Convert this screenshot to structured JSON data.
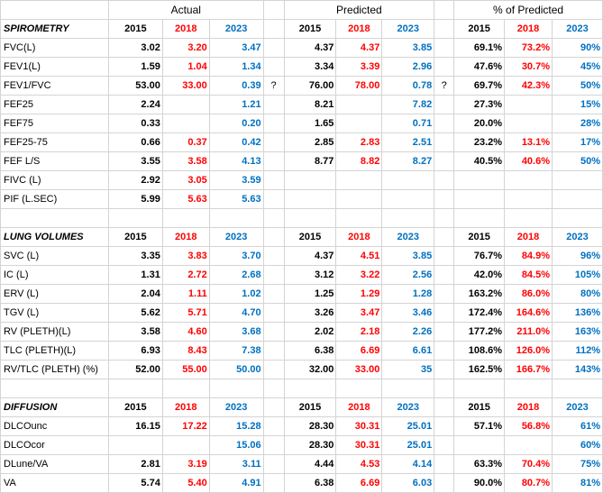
{
  "groups": {
    "actual": "Actual",
    "predicted": "Predicted",
    "pct": "% of Predicted"
  },
  "sections": [
    "SPIROMETRY",
    "LUNG VOLUMES",
    "DIFFUSION"
  ],
  "years": [
    "2015",
    "2018",
    "2023"
  ],
  "rows": [
    {
      "type": "header"
    },
    {
      "type": "section",
      "idx": 0
    },
    {
      "type": "data",
      "label": "FVC(L)",
      "a": [
        "3.02",
        "3.20",
        "3.47"
      ],
      "p": [
        "4.37",
        "4.37",
        "3.85"
      ],
      "pc": [
        "69.1%",
        "73.2%",
        "90%"
      ]
    },
    {
      "type": "data",
      "label": "FEV1(L)",
      "a": [
        "1.59",
        "1.04",
        "1.34"
      ],
      "p": [
        "3.34",
        "3.39",
        "2.96"
      ],
      "pc": [
        "47.6%",
        "30.7%",
        "45%"
      ]
    },
    {
      "type": "data",
      "label": "FEV1/FVC",
      "a": [
        "53.00",
        "33.00",
        "0.39"
      ],
      "q1": "?",
      "p": [
        "76.00",
        "78.00",
        "0.78"
      ],
      "q2": "?",
      "pc": [
        "69.7%",
        "42.3%",
        "50%"
      ]
    },
    {
      "type": "data",
      "label": "FEF25",
      "a": [
        "2.24",
        "",
        "1.21"
      ],
      "p": [
        "8.21",
        "",
        "7.82"
      ],
      "pc": [
        "27.3%",
        "",
        "15%"
      ]
    },
    {
      "type": "data",
      "label": "FEF75",
      "a": [
        "0.33",
        "",
        "0.20"
      ],
      "p": [
        "1.65",
        "",
        "0.71"
      ],
      "pc": [
        "20.0%",
        "",
        "28%"
      ]
    },
    {
      "type": "data",
      "label": "FEF25-75",
      "a": [
        "0.66",
        "0.37",
        "0.42"
      ],
      "p": [
        "2.85",
        "2.83",
        "2.51"
      ],
      "pc": [
        "23.2%",
        "13.1%",
        "17%"
      ]
    },
    {
      "type": "data",
      "label": "FEF L/S",
      "a": [
        "3.55",
        "3.58",
        "4.13"
      ],
      "p": [
        "8.77",
        "8.82",
        "8.27"
      ],
      "pc": [
        "40.5%",
        "40.6%",
        "50%"
      ]
    },
    {
      "type": "data",
      "label": "FIVC (L)",
      "a": [
        "2.92",
        "3.05",
        "3.59"
      ],
      "p": [
        "",
        "",
        ""
      ],
      "pc": [
        "",
        "",
        ""
      ]
    },
    {
      "type": "data",
      "label": "PIF (L.SEC)",
      "a": [
        "5.99",
        "5.63",
        "5.63"
      ],
      "p": [
        "",
        "",
        ""
      ],
      "pc": [
        "",
        "",
        ""
      ]
    },
    {
      "type": "blank"
    },
    {
      "type": "section",
      "idx": 1
    },
    {
      "type": "data",
      "label": "SVC (L)",
      "a": [
        "3.35",
        "3.83",
        "3.70"
      ],
      "p": [
        "4.37",
        "4.51",
        "3.85"
      ],
      "pc": [
        "76.7%",
        "84.9%",
        "96%"
      ]
    },
    {
      "type": "data",
      "label": "IC (L)",
      "a": [
        "1.31",
        "2.72",
        "2.68"
      ],
      "p": [
        "3.12",
        "3.22",
        "2.56"
      ],
      "pc": [
        "42.0%",
        "84.5%",
        "105%"
      ]
    },
    {
      "type": "data",
      "label": "ERV (L)",
      "a": [
        "2.04",
        "1.11",
        "1.02"
      ],
      "p": [
        "1.25",
        "1.29",
        "1.28"
      ],
      "pc": [
        "163.2%",
        "86.0%",
        "80%"
      ]
    },
    {
      "type": "data",
      "label": "TGV (L)",
      "a": [
        "5.62",
        "5.71",
        "4.70"
      ],
      "p": [
        "3.26",
        "3.47",
        "3.46"
      ],
      "pc": [
        "172.4%",
        "164.6%",
        "136%"
      ]
    },
    {
      "type": "data",
      "label": "RV (PLETH)(L)",
      "a": [
        "3.58",
        "4.60",
        "3.68"
      ],
      "p": [
        "2.02",
        "2.18",
        "2.26"
      ],
      "pc": [
        "177.2%",
        "211.0%",
        "163%"
      ]
    },
    {
      "type": "data",
      "label": "TLC (PLETH)(L)",
      "a": [
        "6.93",
        "8.43",
        "7.38"
      ],
      "p": [
        "6.38",
        "6.69",
        "6.61"
      ],
      "pc": [
        "108.6%",
        "126.0%",
        "112%"
      ]
    },
    {
      "type": "data",
      "label": "RV/TLC (PLETH) (%)",
      "a": [
        "52.00",
        "55.00",
        "50.00"
      ],
      "p": [
        "32.00",
        "33.00",
        "35"
      ],
      "pc": [
        "162.5%",
        "166.7%",
        "143%"
      ]
    },
    {
      "type": "blank"
    },
    {
      "type": "section",
      "idx": 2
    },
    {
      "type": "data",
      "label": "DLCOunc",
      "a": [
        "16.15",
        "17.22",
        "15.28"
      ],
      "p": [
        "28.30",
        "30.31",
        "25.01"
      ],
      "pc": [
        "57.1%",
        "56.8%",
        "61%"
      ]
    },
    {
      "type": "data",
      "label": "DLCOcor",
      "a": [
        "",
        "",
        "15.06"
      ],
      "p": [
        "28.30",
        "30.31",
        "25.01"
      ],
      "pc": [
        "",
        "",
        "60%"
      ]
    },
    {
      "type": "data",
      "label": "DLune/VA",
      "a": [
        "2.81",
        "3.19",
        "3.11"
      ],
      "p": [
        "4.44",
        "4.53",
        "4.14"
      ],
      "pc": [
        "63.3%",
        "70.4%",
        "75%"
      ]
    },
    {
      "type": "data",
      "label": "VA",
      "a": [
        "5.74",
        "5.40",
        "4.91"
      ],
      "p": [
        "6.38",
        "6.69",
        "6.03"
      ],
      "pc": [
        "90.0%",
        "80.7%",
        "81%"
      ]
    }
  ],
  "colors": {
    "y2015": "#000000",
    "y2018": "#ff0000",
    "y2023": "#0070c0",
    "grid": "#d4d4d4"
  }
}
